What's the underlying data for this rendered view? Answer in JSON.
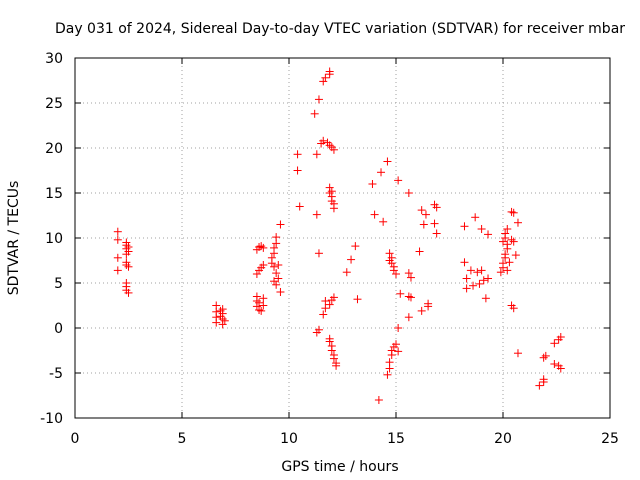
{
  "chart_data": {
    "type": "scatter",
    "title": "Day 031 of 2024, Sidereal Day-to-day VTEC variation (SDTVAR) for receiver mbar",
    "xlabel": "GPS time / hours",
    "ylabel": "SDTVAR / TECUs",
    "xlim": [
      0,
      25
    ],
    "ylim": [
      -10,
      30
    ],
    "x_ticks": [
      "0",
      "5",
      "10",
      "15",
      "20",
      "25"
    ],
    "y_ticks": [
      "-10",
      "-5",
      "0",
      "5",
      "10",
      "15",
      "20",
      "25",
      "30"
    ],
    "grid": true,
    "marker": "plus",
    "color": "#ff0000",
    "series": [
      {
        "name": "SDTVAR",
        "points": [
          [
            2.0,
            10.7
          ],
          [
            2.0,
            9.8
          ],
          [
            2.0,
            7.8
          ],
          [
            2.0,
            6.4
          ],
          [
            2.4,
            9.5
          ],
          [
            2.4,
            9.2
          ],
          [
            2.4,
            8.8
          ],
          [
            2.4,
            8.2
          ],
          [
            2.4,
            7.3
          ],
          [
            2.4,
            7.0
          ],
          [
            2.4,
            5.0
          ],
          [
            2.4,
            4.6
          ],
          [
            2.4,
            4.2
          ],
          [
            2.5,
            9.0
          ],
          [
            2.5,
            8.5
          ],
          [
            2.5,
            6.8
          ],
          [
            2.5,
            3.9
          ],
          [
            6.6,
            2.5
          ],
          [
            6.6,
            1.8
          ],
          [
            6.6,
            1.2
          ],
          [
            6.6,
            0.6
          ],
          [
            6.9,
            2.1
          ],
          [
            6.9,
            1.6
          ],
          [
            6.9,
            1.0
          ],
          [
            6.9,
            0.4
          ],
          [
            6.8,
            1.9
          ],
          [
            6.8,
            1.3
          ],
          [
            7.0,
            0.8
          ],
          [
            8.5,
            6.0
          ],
          [
            8.6,
            6.4
          ],
          [
            8.7,
            6.7
          ],
          [
            8.8,
            7.0
          ],
          [
            8.5,
            8.7
          ],
          [
            8.6,
            9.0
          ],
          [
            8.7,
            9.1
          ],
          [
            8.8,
            8.9
          ],
          [
            8.5,
            3.5
          ],
          [
            8.5,
            3.0
          ],
          [
            8.5,
            2.4
          ],
          [
            8.6,
            2.0
          ],
          [
            8.6,
            2.8
          ],
          [
            8.7,
            1.9
          ],
          [
            8.8,
            2.5
          ],
          [
            8.8,
            3.3
          ],
          [
            9.2,
            7.8
          ],
          [
            9.3,
            8.3
          ],
          [
            9.3,
            8.9
          ],
          [
            9.4,
            9.4
          ],
          [
            9.4,
            10.1
          ],
          [
            9.2,
            7.2
          ],
          [
            9.3,
            6.8
          ],
          [
            9.4,
            6.1
          ],
          [
            9.5,
            5.5
          ],
          [
            9.3,
            5.2
          ],
          [
            9.4,
            4.8
          ],
          [
            9.5,
            7.0
          ],
          [
            9.6,
            11.5
          ],
          [
            9.6,
            4.0
          ],
          [
            10.4,
            19.3
          ],
          [
            10.4,
            17.5
          ],
          [
            10.5,
            13.5
          ],
          [
            11.2,
            23.8
          ],
          [
            11.3,
            19.3
          ],
          [
            11.3,
            12.6
          ],
          [
            11.4,
            25.4
          ],
          [
            11.4,
            8.3
          ],
          [
            11.6,
            27.4
          ],
          [
            11.7,
            27.8
          ],
          [
            11.9,
            28.5
          ],
          [
            11.9,
            28.2
          ],
          [
            11.6,
            20.8
          ],
          [
            11.8,
            20.6
          ],
          [
            11.9,
            20.3
          ],
          [
            12.0,
            20.1
          ],
          [
            12.1,
            19.8
          ],
          [
            11.5,
            20.5
          ],
          [
            11.9,
            15.6
          ],
          [
            11.9,
            15.0
          ],
          [
            12.0,
            14.6
          ],
          [
            12.0,
            14.1
          ],
          [
            12.1,
            13.8
          ],
          [
            12.1,
            13.3
          ],
          [
            12.0,
            15.2
          ],
          [
            11.3,
            -0.5
          ],
          [
            11.4,
            -0.2
          ],
          [
            11.6,
            1.5
          ],
          [
            11.7,
            2.2
          ],
          [
            11.7,
            3.0
          ],
          [
            11.9,
            2.6
          ],
          [
            12.0,
            3.1
          ],
          [
            12.1,
            3.4
          ],
          [
            11.9,
            -1.2
          ],
          [
            11.9,
            -1.5
          ],
          [
            12.0,
            -2.0
          ],
          [
            12.0,
            -2.5
          ],
          [
            12.1,
            -3.0
          ],
          [
            12.1,
            -3.4
          ],
          [
            12.2,
            -3.9
          ],
          [
            12.2,
            -4.2
          ],
          [
            12.7,
            6.2
          ],
          [
            12.9,
            7.6
          ],
          [
            13.1,
            9.1
          ],
          [
            13.2,
            3.2
          ],
          [
            13.9,
            16.0
          ],
          [
            14.0,
            12.6
          ],
          [
            14.4,
            11.8
          ],
          [
            14.3,
            17.3
          ],
          [
            14.2,
            -8.0
          ],
          [
            14.6,
            18.5
          ],
          [
            14.7,
            8.3
          ],
          [
            14.8,
            7.8
          ],
          [
            14.8,
            7.2
          ],
          [
            14.9,
            6.8
          ],
          [
            14.9,
            6.4
          ],
          [
            15.0,
            6.0
          ],
          [
            14.7,
            7.5
          ],
          [
            14.6,
            -5.2
          ],
          [
            14.7,
            -4.5
          ],
          [
            14.7,
            -3.8
          ],
          [
            14.8,
            -3.0
          ],
          [
            14.8,
            -2.5
          ],
          [
            14.9,
            -2.1
          ],
          [
            15.0,
            -1.8
          ],
          [
            15.1,
            16.4
          ],
          [
            15.2,
            3.8
          ],
          [
            15.1,
            -2.6
          ],
          [
            15.1,
            0.0
          ],
          [
            15.6,
            15.0
          ],
          [
            15.6,
            6.1
          ],
          [
            15.7,
            5.6
          ],
          [
            15.6,
            3.5
          ],
          [
            15.7,
            3.4
          ],
          [
            15.6,
            1.2
          ],
          [
            16.2,
            13.1
          ],
          [
            16.3,
            11.5
          ],
          [
            16.4,
            12.6
          ],
          [
            16.1,
            8.5
          ],
          [
            16.2,
            1.9
          ],
          [
            16.5,
            2.7
          ],
          [
            16.5,
            2.4
          ],
          [
            16.8,
            13.7
          ],
          [
            16.9,
            13.4
          ],
          [
            16.8,
            11.6
          ],
          [
            16.9,
            10.5
          ],
          [
            18.2,
            11.3
          ],
          [
            18.2,
            7.3
          ],
          [
            18.3,
            5.5
          ],
          [
            18.3,
            4.4
          ],
          [
            18.5,
            6.4
          ],
          [
            18.6,
            4.7
          ],
          [
            18.7,
            12.3
          ],
          [
            18.8,
            6.2
          ],
          [
            18.9,
            4.9
          ],
          [
            19.0,
            11.0
          ],
          [
            19.0,
            6.4
          ],
          [
            19.1,
            5.3
          ],
          [
            19.2,
            3.3
          ],
          [
            19.3,
            5.5
          ],
          [
            19.3,
            10.4
          ],
          [
            19.9,
            6.2
          ],
          [
            20.0,
            6.7
          ],
          [
            20.0,
            7.2
          ],
          [
            20.1,
            7.8
          ],
          [
            20.1,
            8.2
          ],
          [
            20.2,
            8.8
          ],
          [
            20.2,
            9.3
          ],
          [
            20.0,
            9.6
          ],
          [
            20.1,
            10.0
          ],
          [
            20.1,
            10.5
          ],
          [
            20.2,
            11.0
          ],
          [
            20.2,
            6.4
          ],
          [
            20.3,
            7.3
          ],
          [
            20.4,
            12.9
          ],
          [
            20.5,
            12.8
          ],
          [
            20.4,
            9.8
          ],
          [
            20.5,
            9.6
          ],
          [
            20.4,
            2.5
          ],
          [
            20.5,
            2.2
          ],
          [
            20.6,
            8.1
          ],
          [
            20.7,
            11.7
          ],
          [
            20.7,
            -2.8
          ],
          [
            21.7,
            -6.4
          ],
          [
            21.9,
            -6.0
          ],
          [
            21.9,
            -5.7
          ],
          [
            21.9,
            -3.3
          ],
          [
            22.0,
            -3.1
          ],
          [
            22.4,
            -1.7
          ],
          [
            22.4,
            -4.0
          ],
          [
            22.6,
            -1.3
          ],
          [
            22.6,
            -4.2
          ],
          [
            22.7,
            -1.0
          ],
          [
            22.7,
            -4.5
          ]
        ]
      }
    ]
  }
}
